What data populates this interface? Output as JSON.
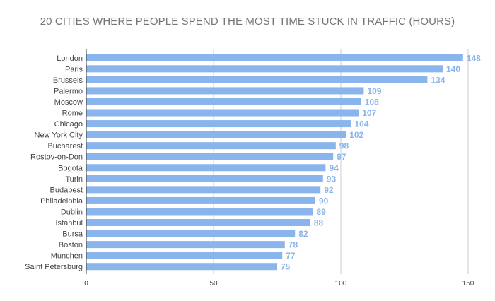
{
  "chart_data": {
    "type": "bar",
    "orientation": "horizontal",
    "title": "20 CITIES WHERE PEOPLE SPEND THE MOST TIME STUCK IN TRAFFIC (HOURS)",
    "categories": [
      "London",
      "Paris",
      "Brussels",
      "Palermo",
      "Moscow",
      "Rome",
      "Chicago",
      "New York City",
      "Bucharest",
      "Rostov-on-Don",
      "Bogota",
      "Turin",
      "Budapest",
      "Philadelphia",
      "Dublin",
      "Istanbul",
      "Bursa",
      "Boston",
      "Munchen",
      "Saint Petersburg"
    ],
    "values": [
      148,
      140,
      134,
      109,
      108,
      107,
      104,
      102,
      98,
      97,
      94,
      93,
      92,
      90,
      89,
      88,
      82,
      78,
      77,
      75
    ],
    "xlim": [
      0,
      150
    ],
    "x_ticks": [
      0,
      50,
      100,
      150
    ],
    "grid": true,
    "data_labels": true,
    "bar_color": "#8ab4ec",
    "label_color": "#8ab4ec"
  }
}
